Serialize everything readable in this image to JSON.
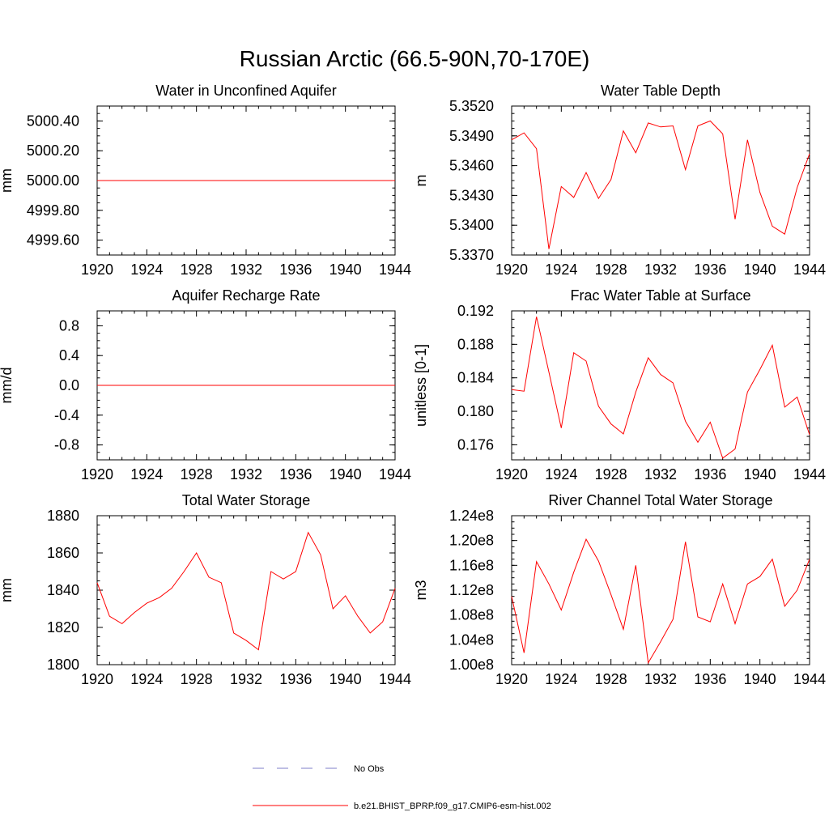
{
  "figure": {
    "title": "Russian Arctic (66.5-90N,70-170E)"
  },
  "chart_data": [
    {
      "type": "line",
      "title": "Water in Unconfined Aquifer",
      "xlabel": "",
      "ylabel": "mm",
      "xlim": [
        1920,
        1944
      ],
      "ylim": [
        4999.5,
        5000.5
      ],
      "xticks": [
        1920,
        1924,
        1928,
        1932,
        1936,
        1940,
        1944
      ],
      "xtick_labels": [
        "1920",
        "1924",
        "1928",
        "1932",
        "1936",
        "1940",
        "1944"
      ],
      "yticks": [
        4999.6,
        4999.8,
        5000.0,
        5000.2,
        5000.4
      ],
      "ytick_labels": [
        "4999.60",
        "4999.80",
        "5000.00",
        "5000.20",
        "5000.40"
      ],
      "series": [
        {
          "name": "b.e21.BHIST_BPRP.f09_g17.CMIP6-esm-hist.002",
          "color": "#ff0000",
          "x": [
            1920,
            1921,
            1922,
            1923,
            1924,
            1925,
            1926,
            1927,
            1928,
            1929,
            1930,
            1931,
            1932,
            1933,
            1934,
            1935,
            1936,
            1937,
            1938,
            1939,
            1940,
            1941,
            1942,
            1943,
            1944
          ],
          "y": [
            5000,
            5000,
            5000,
            5000,
            5000,
            5000,
            5000,
            5000,
            5000,
            5000,
            5000,
            5000,
            5000,
            5000,
            5000,
            5000,
            5000,
            5000,
            5000,
            5000,
            5000,
            5000,
            5000,
            5000,
            5000
          ]
        }
      ]
    },
    {
      "type": "line",
      "title": "Water Table Depth",
      "xlabel": "",
      "ylabel": "m",
      "xlim": [
        1920,
        1944
      ],
      "ylim": [
        5.337,
        5.352
      ],
      "xticks": [
        1920,
        1924,
        1928,
        1932,
        1936,
        1940,
        1944
      ],
      "xtick_labels": [
        "1920",
        "1924",
        "1928",
        "1932",
        "1936",
        "1940",
        "1944"
      ],
      "yticks": [
        5.337,
        5.34,
        5.343,
        5.346,
        5.349,
        5.352
      ],
      "ytick_labels": [
        "5.3370",
        "5.3400",
        "5.3430",
        "5.3460",
        "5.3490",
        "5.3520"
      ],
      "series": [
        {
          "name": "b.e21.BHIST_BPRP.f09_g17.CMIP6-esm-hist.002",
          "color": "#ff0000",
          "x": [
            1920,
            1921,
            1922,
            1923,
            1924,
            1925,
            1926,
            1927,
            1928,
            1929,
            1930,
            1931,
            1932,
            1933,
            1934,
            1935,
            1936,
            1937,
            1938,
            1939,
            1940,
            1941,
            1942,
            1943,
            1944
          ],
          "y": [
            5.3486,
            5.3493,
            5.3477,
            5.3376,
            5.3439,
            5.3428,
            5.3453,
            5.3427,
            5.3446,
            5.3495,
            5.3473,
            5.3503,
            5.3499,
            5.35,
            5.3456,
            5.35,
            5.3505,
            5.3492,
            5.3406,
            5.3486,
            5.3433,
            5.3399,
            5.3391,
            5.3438,
            5.3472
          ]
        }
      ]
    },
    {
      "type": "line",
      "title": "Aquifer Recharge Rate",
      "xlabel": "",
      "ylabel": "mm/d",
      "xlim": [
        1920,
        1944
      ],
      "ylim": [
        -1.0,
        1.0
      ],
      "xticks": [
        1920,
        1924,
        1928,
        1932,
        1936,
        1940,
        1944
      ],
      "xtick_labels": [
        "1920",
        "1924",
        "1928",
        "1932",
        "1936",
        "1940",
        "1944"
      ],
      "yticks": [
        -0.8,
        -0.4,
        0.0,
        0.4,
        0.8
      ],
      "ytick_labels": [
        "-0.8",
        "-0.4",
        "0.0",
        "0.4",
        "0.8"
      ],
      "series": [
        {
          "name": "b.e21.BHIST_BPRP.f09_g17.CMIP6-esm-hist.002",
          "color": "#ff0000",
          "x": [
            1920,
            1921,
            1922,
            1923,
            1924,
            1925,
            1926,
            1927,
            1928,
            1929,
            1930,
            1931,
            1932,
            1933,
            1934,
            1935,
            1936,
            1937,
            1938,
            1939,
            1940,
            1941,
            1942,
            1943,
            1944
          ],
          "y": [
            0,
            0,
            0,
            0,
            0,
            0,
            0,
            0,
            0,
            0,
            0,
            0,
            0,
            0,
            0,
            0,
            0,
            0,
            0,
            0,
            0,
            0,
            0,
            0,
            0
          ]
        }
      ]
    },
    {
      "type": "line",
      "title": "Frac Water Table at Surface",
      "xlabel": "",
      "ylabel": "unitless [0-1]",
      "xlim": [
        1920,
        1944
      ],
      "ylim": [
        0.1742,
        0.192
      ],
      "xticks": [
        1920,
        1924,
        1928,
        1932,
        1936,
        1940,
        1944
      ],
      "xtick_labels": [
        "1920",
        "1924",
        "1928",
        "1932",
        "1936",
        "1940",
        "1944"
      ],
      "yticks": [
        0.176,
        0.18,
        0.184,
        0.188,
        0.192
      ],
      "ytick_labels": [
        "0.176",
        "0.180",
        "0.184",
        "0.188",
        "0.192"
      ],
      "series": [
        {
          "name": "b.e21.BHIST_BPRP.f09_g17.CMIP6-esm-hist.002",
          "color": "#ff0000",
          "x": [
            1920,
            1921,
            1922,
            1923,
            1924,
            1925,
            1926,
            1927,
            1928,
            1929,
            1930,
            1931,
            1932,
            1933,
            1934,
            1935,
            1936,
            1937,
            1938,
            1939,
            1940,
            1941,
            1942,
            1943,
            1944
          ],
          "y": [
            0.1826,
            0.1824,
            0.1913,
            0.1847,
            0.178,
            0.187,
            0.186,
            0.1806,
            0.1785,
            0.1773,
            0.1823,
            0.1864,
            0.1844,
            0.1834,
            0.1788,
            0.1763,
            0.1787,
            0.1744,
            0.1755,
            0.1823,
            0.185,
            0.1879,
            0.1805,
            0.1817,
            0.1772
          ]
        }
      ]
    },
    {
      "type": "line",
      "title": "Total Water Storage",
      "xlabel": "",
      "ylabel": "mm",
      "xlim": [
        1920,
        1944
      ],
      "ylim": [
        1800,
        1880
      ],
      "xticks": [
        1920,
        1924,
        1928,
        1932,
        1936,
        1940,
        1944
      ],
      "xtick_labels": [
        "1920",
        "1924",
        "1928",
        "1932",
        "1936",
        "1940",
        "1944"
      ],
      "yticks": [
        1800,
        1820,
        1840,
        1860,
        1880
      ],
      "ytick_labels": [
        "1800",
        "1820",
        "1840",
        "1860",
        "1880"
      ],
      "series": [
        {
          "name": "b.e21.BHIST_BPRP.f09_g17.CMIP6-esm-hist.002",
          "color": "#ff0000",
          "x": [
            1920,
            1921,
            1922,
            1923,
            1924,
            1925,
            1926,
            1927,
            1928,
            1929,
            1930,
            1931,
            1932,
            1933,
            1934,
            1935,
            1936,
            1937,
            1938,
            1939,
            1940,
            1941,
            1942,
            1943,
            1944
          ],
          "y": [
            1844,
            1826,
            1822,
            1828,
            1833,
            1836,
            1841,
            1850,
            1860,
            1847,
            1844,
            1817,
            1813,
            1808,
            1850,
            1846,
            1850,
            1871,
            1859,
            1830,
            1837,
            1826,
            1817,
            1823,
            1841
          ]
        }
      ]
    },
    {
      "type": "line",
      "title": "River Channel Total Water Storage",
      "xlabel": "",
      "ylabel": "m3",
      "xlim": [
        1920,
        1944
      ],
      "ylim": [
        100000000,
        124000000
      ],
      "xticks": [
        1920,
        1924,
        1928,
        1932,
        1936,
        1940,
        1944
      ],
      "xtick_labels": [
        "1920",
        "1924",
        "1928",
        "1932",
        "1936",
        "1940",
        "1944"
      ],
      "yticks": [
        100000000,
        104000000,
        108000000,
        112000000,
        116000000,
        120000000,
        124000000
      ],
      "ytick_labels": [
        "1.00e8",
        "1.04e8",
        "1.08e8",
        "1.12e8",
        "1.16e8",
        "1.20e8",
        "1.24e8"
      ],
      "series": [
        {
          "name": "b.e21.BHIST_BPRP.f09_g17.CMIP6-esm-hist.002",
          "color": "#ff0000",
          "x": [
            1920,
            1921,
            1922,
            1923,
            1924,
            1925,
            1926,
            1927,
            1928,
            1929,
            1930,
            1931,
            1932,
            1933,
            1934,
            1935,
            1936,
            1937,
            1938,
            1939,
            1940,
            1941,
            1942,
            1943,
            1944
          ],
          "y": [
            111000000,
            101900000,
            116600000,
            113000000,
            108800000,
            114900000,
            120200000,
            116700000,
            111300000,
            105700000,
            116000000,
            100300000,
            103700000,
            107300000,
            119800000,
            107700000,
            106900000,
            113000000,
            106600000,
            113000000,
            114200000,
            117000000,
            109400000,
            112000000,
            117000000
          ]
        }
      ]
    }
  ],
  "legend": {
    "entries": [
      {
        "label": "No Obs",
        "color": "#7f7fc8",
        "dash": "dashed"
      },
      {
        "label": "b.e21.BHIST_BPRP.f09_g17.CMIP6-esm-hist.002",
        "color": "#ff0000",
        "dash": "solid"
      }
    ]
  }
}
